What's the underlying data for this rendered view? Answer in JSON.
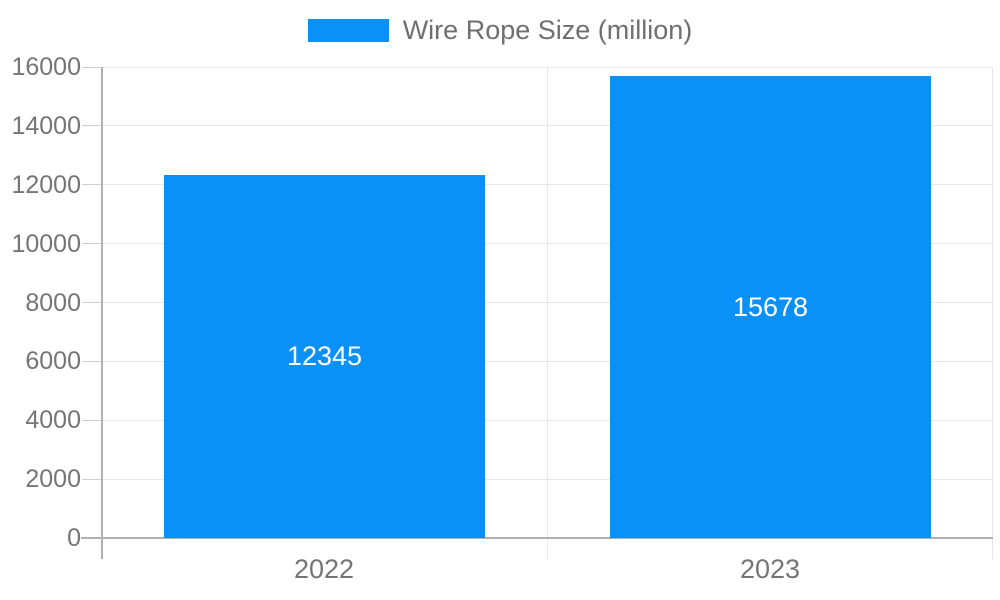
{
  "chart_data": {
    "type": "bar",
    "title": "",
    "legend": "Wire Rope Size (million)",
    "legend_position": "top",
    "categories": [
      "2022",
      "2023"
    ],
    "series": [
      {
        "name": "Wire Rope Size (million)",
        "values": [
          12345,
          15678
        ]
      }
    ],
    "value_labels": [
      "12345",
      "15678"
    ],
    "ylim": [
      0,
      16000
    ],
    "ytick_step": 2000,
    "yticks": [
      0,
      2000,
      4000,
      6000,
      8000,
      10000,
      12000,
      14000,
      16000
    ],
    "grid": true,
    "colors": {
      "bar": "#0991f7",
      "axis": "#b0b0b0",
      "gridline": "#e7e7e7",
      "tick": "#cfcfcf",
      "axis_label_text": "#757575",
      "legend_text": "#6f6f6f",
      "value_label_text": "#ffffff",
      "background": "#ffffff"
    }
  }
}
